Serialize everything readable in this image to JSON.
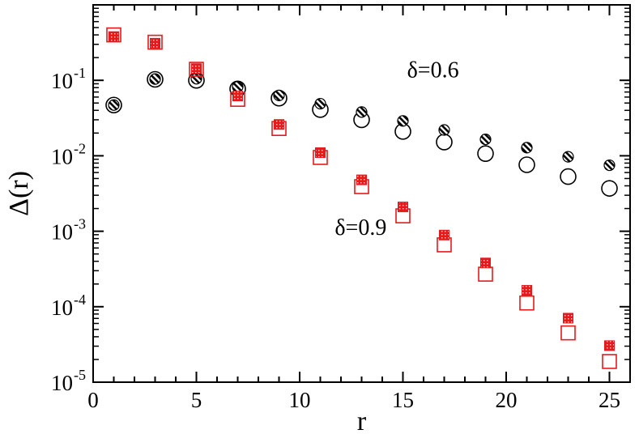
{
  "chart_data": {
    "type": "scatter",
    "xlabel": "r",
    "ylabel": "Δ(r)",
    "xlim": [
      0,
      26
    ],
    "ylim_log10": [
      -5,
      0
    ],
    "yscale": "log",
    "grid": false,
    "x_ticks": [
      0,
      5,
      10,
      15,
      20,
      25
    ],
    "y_ticks": [
      {
        "base": "10",
        "exp": "-5",
        "value": 1e-05
      },
      {
        "base": "10",
        "exp": "-4",
        "value": 0.0001
      },
      {
        "base": "10",
        "exp": "-3",
        "value": 0.001
      },
      {
        "base": "10",
        "exp": "-2",
        "value": 0.01
      },
      {
        "base": "10",
        "exp": "-1",
        "value": 0.1
      }
    ],
    "annotations": [
      {
        "text": "δ=0.6",
        "x": 15.2,
        "y": 0.11
      },
      {
        "text": "δ=0.9",
        "x": 11.7,
        "y": 0.0009
      }
    ],
    "series": [
      {
        "group": "δ=0.6",
        "style": "open-circle",
        "color": "#000000",
        "x": [
          1,
          3,
          5,
          7,
          9,
          11,
          13,
          15,
          17,
          19,
          21,
          23,
          25
        ],
        "y": [
          0.047,
          0.103,
          0.1,
          0.077,
          0.058,
          0.041,
          0.03,
          0.021,
          0.0152,
          0.0107,
          0.0076,
          0.0053,
          0.0037
        ]
      },
      {
        "group": "δ=0.6",
        "style": "hatched-circle",
        "color": "#000000",
        "x": [
          1,
          3,
          5,
          7,
          9,
          11,
          13,
          15,
          17,
          19,
          21,
          23,
          25
        ],
        "y": [
          0.047,
          0.104,
          0.105,
          0.082,
          0.063,
          0.049,
          0.038,
          0.029,
          0.022,
          0.0165,
          0.0128,
          0.0097,
          0.0075
        ]
      },
      {
        "group": "δ=0.9",
        "style": "open-square",
        "color": "#e41a1c",
        "x": [
          1,
          3,
          5,
          7,
          9,
          11,
          13,
          15,
          17,
          19,
          21,
          23,
          25
        ],
        "y": [
          0.4,
          0.32,
          0.14,
          0.056,
          0.023,
          0.0095,
          0.0039,
          0.0016,
          0.00066,
          0.00027,
          0.000112,
          4.5e-05,
          1.88e-05
        ]
      },
      {
        "group": "δ=0.9",
        "style": "dotted-square",
        "color": "#e41a1c",
        "x": [
          1,
          3,
          5,
          7,
          9,
          11,
          13,
          15,
          17,
          19,
          21,
          23,
          25
        ],
        "y": [
          0.38,
          0.31,
          0.143,
          0.062,
          0.026,
          0.011,
          0.0048,
          0.0021,
          0.00089,
          0.00038,
          0.000165,
          7.05e-05,
          3.05e-05
        ]
      }
    ]
  }
}
